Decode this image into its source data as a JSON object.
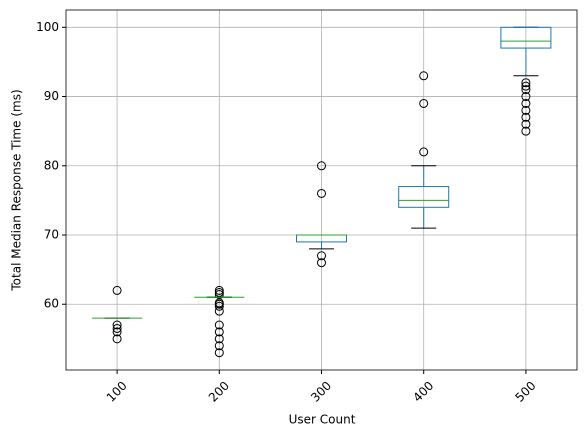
{
  "chart_data": {
    "type": "box",
    "xlabel": "User Count",
    "ylabel": "Total Median Response Time (ms)",
    "categories": [
      "100",
      "200",
      "300",
      "400",
      "500"
    ],
    "boxes": [
      {
        "whislo": 58,
        "q1": 58,
        "med": 58,
        "q3": 58,
        "whishi": 58,
        "fliers": [
          62,
          57,
          56.5,
          56,
          55
        ]
      },
      {
        "whislo": 61,
        "q1": 61,
        "med": 61,
        "q3": 61,
        "whishi": 61,
        "fliers": [
          62,
          61.7,
          61.4,
          60.2,
          60,
          59.7,
          59,
          57,
          56,
          55,
          54,
          53
        ]
      },
      {
        "whislo": 68,
        "q1": 69,
        "med": 70,
        "q3": 70,
        "whishi": 70,
        "fliers": [
          80,
          76,
          67,
          66
        ]
      },
      {
        "whislo": 71,
        "q1": 74,
        "med": 75,
        "q3": 77,
        "whishi": 80,
        "fliers": [
          82,
          89,
          93
        ]
      },
      {
        "whislo": 93,
        "q1": 97,
        "med": 98,
        "q3": 100,
        "whishi": 100,
        "fliers": [
          92,
          91.5,
          91,
          90,
          89,
          88,
          87,
          86,
          85
        ]
      }
    ],
    "box_color": "#1f77b4",
    "median_color": "#2ca02c",
    "cap_color": "#000000",
    "ylim": [
      50.5,
      102.5
    ],
    "yticks": [
      60,
      70,
      80,
      90,
      100
    ],
    "grid": true
  }
}
